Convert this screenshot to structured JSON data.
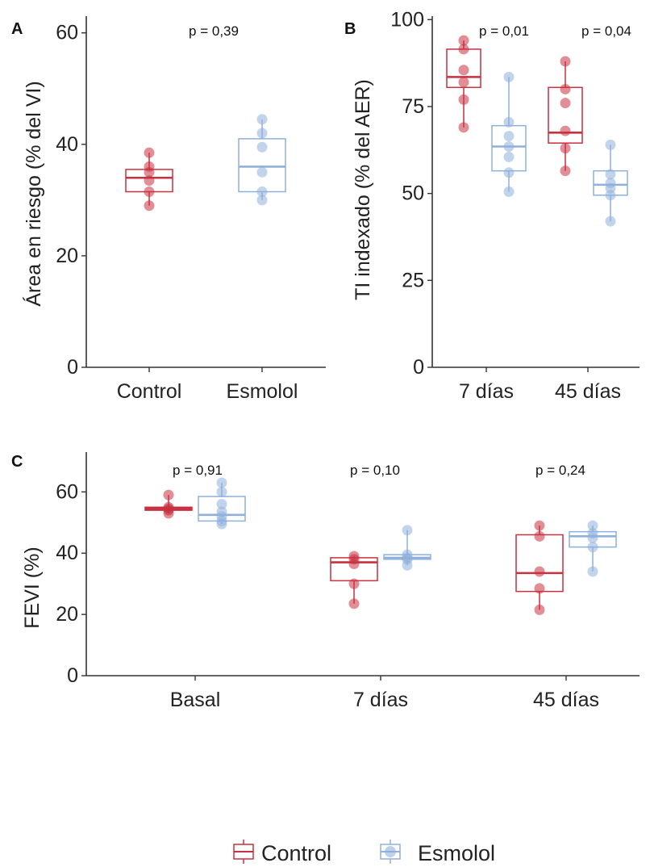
{
  "colors": {
    "control": "#c8313f",
    "esmolol": "#8fb0dc",
    "axis": "#333333"
  },
  "legend": {
    "placement": "bottom",
    "items": [
      "Control",
      "Esmolol"
    ]
  },
  "chart_data": [
    {
      "panel": "A",
      "type": "boxplot",
      "title": "",
      "xlabel": "",
      "ylabel": "Área en riesgo (% del VI)",
      "ylim": [
        0,
        63
      ],
      "yticks": [
        0,
        20,
        40,
        60
      ],
      "grid": false,
      "categories": [
        "Control",
        "Esmolol"
      ],
      "grouped": false,
      "annotations": [
        "p = 0,39"
      ],
      "boxes": [
        {
          "category": "Control",
          "series": "Control",
          "min": 29,
          "q1": 31.5,
          "median": 34,
          "q3": 35.5,
          "max": 38.5,
          "points": [
            29,
            31.5,
            33.5,
            35,
            36,
            38.5
          ]
        },
        {
          "category": "Esmolol",
          "series": "Esmolol",
          "min": 30,
          "q1": 31.5,
          "median": 36,
          "q3": 41,
          "max": 44.5,
          "points": [
            30,
            31.5,
            35,
            39.5,
            42,
            44.5
          ]
        }
      ]
    },
    {
      "panel": "B",
      "type": "boxplot",
      "title": "",
      "xlabel": "",
      "ylabel": "TI indexado (% del AER)",
      "ylim": [
        0,
        101
      ],
      "yticks": [
        0,
        25,
        50,
        75,
        100
      ],
      "grid": false,
      "categories": [
        "7 días",
        "45 días"
      ],
      "grouped": true,
      "annotations": [
        "p = 0,01",
        "p = 0,04"
      ],
      "boxes": [
        {
          "category": "7 días",
          "series": "Control",
          "min": 69,
          "q1": 80.5,
          "median": 83.5,
          "q3": 91.5,
          "max": 94,
          "points": [
            69,
            77,
            82,
            85.5,
            91.5,
            94
          ]
        },
        {
          "category": "7 días",
          "series": "Esmolol",
          "min": 50.5,
          "q1": 56.5,
          "median": 63.5,
          "q3": 69.5,
          "max": 83.5,
          "points": [
            50.5,
            56,
            60.5,
            63.5,
            66.5,
            70.5,
            83.5
          ]
        },
        {
          "category": "45 días",
          "series": "Control",
          "min": 56.5,
          "q1": 64.5,
          "median": 67.5,
          "q3": 80.5,
          "max": 88,
          "points": [
            56.5,
            63,
            68,
            76,
            80,
            88
          ]
        },
        {
          "category": "45 días",
          "series": "Esmolol",
          "min": 42,
          "q1": 49.5,
          "median": 52.5,
          "q3": 56.5,
          "max": 64,
          "points": [
            42,
            49.5,
            51.5,
            53,
            55.5,
            64
          ]
        }
      ]
    },
    {
      "panel": "C",
      "type": "boxplot",
      "title": "",
      "xlabel": "",
      "ylabel": "FEVI (%)",
      "ylim": [
        0,
        73
      ],
      "yticks": [
        0,
        20,
        40,
        60
      ],
      "grid": false,
      "categories": [
        "Basal",
        "7 días",
        "45 días"
      ],
      "grouped": true,
      "annotations": [
        "p = 0,91",
        "p = 0,10",
        "p = 0,24"
      ],
      "boxes": [
        {
          "category": "Basal",
          "series": "Control",
          "min": 53,
          "q1": 54,
          "median": 54.5,
          "q3": 55,
          "max": 59,
          "points": [
            53,
            54,
            54.5,
            55,
            59
          ]
        },
        {
          "category": "Basal",
          "series": "Esmolol",
          "min": 49.5,
          "q1": 50.5,
          "median": 52.5,
          "q3": 58.5,
          "max": 63,
          "points": [
            49.5,
            50.5,
            52,
            53.5,
            56,
            60,
            63
          ]
        },
        {
          "category": "7 días",
          "series": "Control",
          "min": 23.5,
          "q1": 31,
          "median": 37,
          "q3": 38.5,
          "max": 39,
          "points": [
            23.5,
            30,
            36.5,
            38,
            39
          ]
        },
        {
          "category": "7 días",
          "series": "Esmolol",
          "min": 36,
          "q1": 38,
          "median": 38.5,
          "q3": 39.5,
          "max": 47.5,
          "points": [
            36,
            38,
            38.5,
            39.5,
            47.5
          ]
        },
        {
          "category": "45 días",
          "series": "Control",
          "min": 21.5,
          "q1": 27.5,
          "median": 33.5,
          "q3": 46,
          "max": 49,
          "points": [
            21.5,
            28.5,
            34,
            45.5,
            49
          ]
        },
        {
          "category": "45 días",
          "series": "Esmolol",
          "min": 34,
          "q1": 42,
          "median": 45.5,
          "q3": 47,
          "max": 49,
          "points": [
            34,
            42,
            45,
            46.5,
            49
          ]
        }
      ]
    }
  ]
}
